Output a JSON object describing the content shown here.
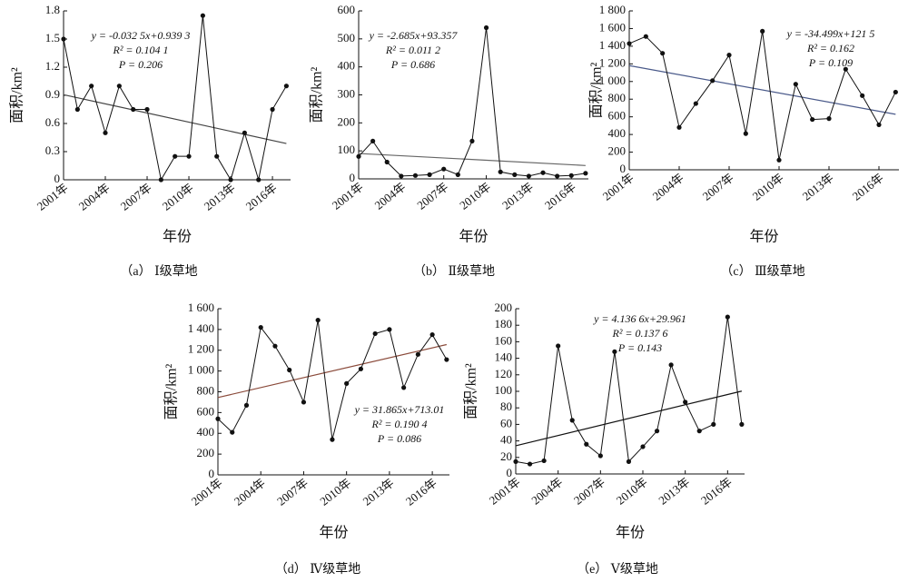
{
  "chart_data": [
    {
      "type": "line",
      "caption": "（a） Ⅰ级草地",
      "x_label": "年份",
      "y_label": "面积/km²",
      "x": [
        2001,
        2002,
        2003,
        2004,
        2005,
        2006,
        2007,
        2008,
        2009,
        2010,
        2011,
        2012,
        2013,
        2014,
        2015,
        2016,
        2017
      ],
      "values": [
        1.5,
        0.75,
        1.0,
        0.5,
        1.0,
        0.75,
        0.75,
        0,
        0.25,
        0.25,
        1.75,
        0.25,
        0,
        0.5,
        0,
        0.75,
        1.0
      ],
      "color": "#111111",
      "ylim": [
        0,
        1.8
      ],
      "yticks": [
        0,
        0.3,
        0.6,
        0.9,
        1.2,
        1.5,
        1.8
      ],
      "xlim": [
        2001,
        2017.3
      ],
      "xticks": [
        {
          "value": 2001,
          "label": "2001年"
        },
        {
          "value": 2004,
          "label": "2004年"
        },
        {
          "value": 2007,
          "label": "2007年"
        },
        {
          "value": 2010,
          "label": "2010年"
        },
        {
          "value": 2013,
          "label": "2013年"
        },
        {
          "value": 2016,
          "label": "2016年"
        }
      ],
      "equation": "y = -0.032 5x+0.939 3",
      "r2": "R² = 0.104 1",
      "p": "P = 0.206",
      "trend": {
        "slope": -0.0325,
        "intercept": 0.9393,
        "color": "#444444"
      }
    },
    {
      "type": "line",
      "caption": "（b） Ⅱ级草地",
      "x_label": "年份",
      "y_label": "面积/km²",
      "x": [
        2001,
        2002,
        2003,
        2004,
        2005,
        2006,
        2007,
        2008,
        2009,
        2010,
        2011,
        2012,
        2013,
        2014,
        2015,
        2016,
        2017
      ],
      "values": [
        80,
        135,
        60,
        10,
        12,
        15,
        35,
        15,
        135,
        540,
        25,
        15,
        10,
        22,
        10,
        12,
        20
      ],
      "color": "#111111",
      "ylim": [
        0,
        600
      ],
      "yticks": [
        0,
        100,
        200,
        300,
        400,
        500,
        600
      ],
      "xlim": [
        2001,
        2017.2
      ],
      "xticks": [
        {
          "value": 2001,
          "label": "2001年"
        },
        {
          "value": 2004,
          "label": "2004年"
        },
        {
          "value": 2007,
          "label": "2007年"
        },
        {
          "value": 2010,
          "label": "2010年"
        },
        {
          "value": 2013,
          "label": "2013年"
        },
        {
          "value": 2016,
          "label": "2016年"
        }
      ],
      "equation": "y = -2.685x+93.357",
      "r2": "R² = 0.011 2",
      "p": "P = 0.686",
      "trend": {
        "slope": -2.685,
        "intercept": 93.357,
        "color": "#666666"
      }
    },
    {
      "type": "line",
      "caption": "（c） Ⅲ级草地",
      "x_label": "年份",
      "y_label": "面积/km²",
      "x": [
        2001,
        2002,
        2003,
        2004,
        2005,
        2006,
        2007,
        2008,
        2009,
        2010,
        2011,
        2012,
        2013,
        2014,
        2015,
        2016,
        2017
      ],
      "values": [
        1430,
        1510,
        1320,
        480,
        750,
        1010,
        1300,
        410,
        1570,
        110,
        970,
        570,
        580,
        1140,
        840,
        510,
        880
      ],
      "color": "#111111",
      "ylim": [
        0,
        1800
      ],
      "yticks": [
        0,
        200,
        400,
        600,
        800,
        {
          "value": 1000,
          "label": "1 000"
        },
        {
          "value": 1200,
          "label": "1 200"
        },
        {
          "value": 1400,
          "label": "1 400"
        },
        {
          "value": 1600,
          "label": "1 600"
        },
        {
          "value": 1800,
          "label": "1 800"
        }
      ],
      "xlim": [
        2001,
        2017.2
      ],
      "xticks": [
        {
          "value": 2001,
          "label": "2001年"
        },
        {
          "value": 2004,
          "label": "2004年"
        },
        {
          "value": 2007,
          "label": "2007年"
        },
        {
          "value": 2010,
          "label": "2010年"
        },
        {
          "value": 2013,
          "label": "2013年"
        },
        {
          "value": 2016,
          "label": "2016年"
        }
      ],
      "equation": "y = -34.499x+121 5",
      "r2": "R² = 0.162",
      "p": "P = 0.109",
      "trend": {
        "slope": -34.499,
        "intercept": 1215,
        "color": "#4a5a8a"
      }
    },
    {
      "type": "line",
      "caption": "（d） Ⅳ级草地",
      "x_label": "年份",
      "y_label": "面积/km²",
      "x": [
        2001,
        2002,
        2003,
        2004,
        2005,
        2006,
        2007,
        2008,
        2009,
        2010,
        2011,
        2012,
        2013,
        2014,
        2015,
        2016,
        2017
      ],
      "values": [
        540,
        410,
        670,
        1420,
        1240,
        1010,
        700,
        1490,
        340,
        880,
        1020,
        1360,
        1400,
        840,
        1160,
        1350,
        1110
      ],
      "color": "#111111",
      "ylim": [
        0,
        1600
      ],
      "yticks": [
        0,
        200,
        400,
        600,
        800,
        {
          "value": 1000,
          "label": "1 000"
        },
        {
          "value": 1200,
          "label": "1 200"
        },
        {
          "value": 1400,
          "label": "1 400"
        },
        {
          "value": 1600,
          "label": "1 600"
        }
      ],
      "xlim": [
        2001,
        2017.2
      ],
      "xticks": [
        {
          "value": 2001,
          "label": "2001年"
        },
        {
          "value": 2004,
          "label": "2004年"
        },
        {
          "value": 2007,
          "label": "2007年"
        },
        {
          "value": 2010,
          "label": "2010年"
        },
        {
          "value": 2013,
          "label": "2013年"
        },
        {
          "value": 2016,
          "label": "2016年"
        }
      ],
      "equation": "y = 31.865x+713.01",
      "r2": "R² = 0.190 4",
      "p": "P = 0.086",
      "trend": {
        "slope": 31.865,
        "intercept": 713.01,
        "color": "#8a4a3a"
      }
    },
    {
      "type": "line",
      "caption": "（e） Ⅴ级草地",
      "x_label": "年份",
      "y_label": "面积/km²",
      "x": [
        2001,
        2002,
        2003,
        2004,
        2005,
        2006,
        2007,
        2008,
        2009,
        2010,
        2011,
        2012,
        2013,
        2014,
        2015,
        2016,
        2017
      ],
      "values": [
        15,
        12,
        16,
        155,
        65,
        36,
        22,
        148,
        15,
        33,
        52,
        132,
        87,
        52,
        60,
        190,
        60
      ],
      "color": "#111111",
      "ylim": [
        0,
        200
      ],
      "yticks": [
        0,
        20,
        40,
        60,
        80,
        100,
        120,
        140,
        160,
        180,
        200
      ],
      "xlim": [
        2001,
        2017.2
      ],
      "xticks": [
        {
          "value": 2001,
          "label": "2001年"
        },
        {
          "value": 2004,
          "label": "2004年"
        },
        {
          "value": 2007,
          "label": "2007年"
        },
        {
          "value": 2010,
          "label": "2010年"
        },
        {
          "value": 2013,
          "label": "2013年"
        },
        {
          "value": 2016,
          "label": "2016年"
        }
      ],
      "equation": "y = 4.136 6x+29.961",
      "r2": "R² = 0.137 6",
      "p": "P = 0.143",
      "trend": {
        "slope": 4.1366,
        "intercept": 29.961,
        "color": "#111111"
      }
    }
  ]
}
